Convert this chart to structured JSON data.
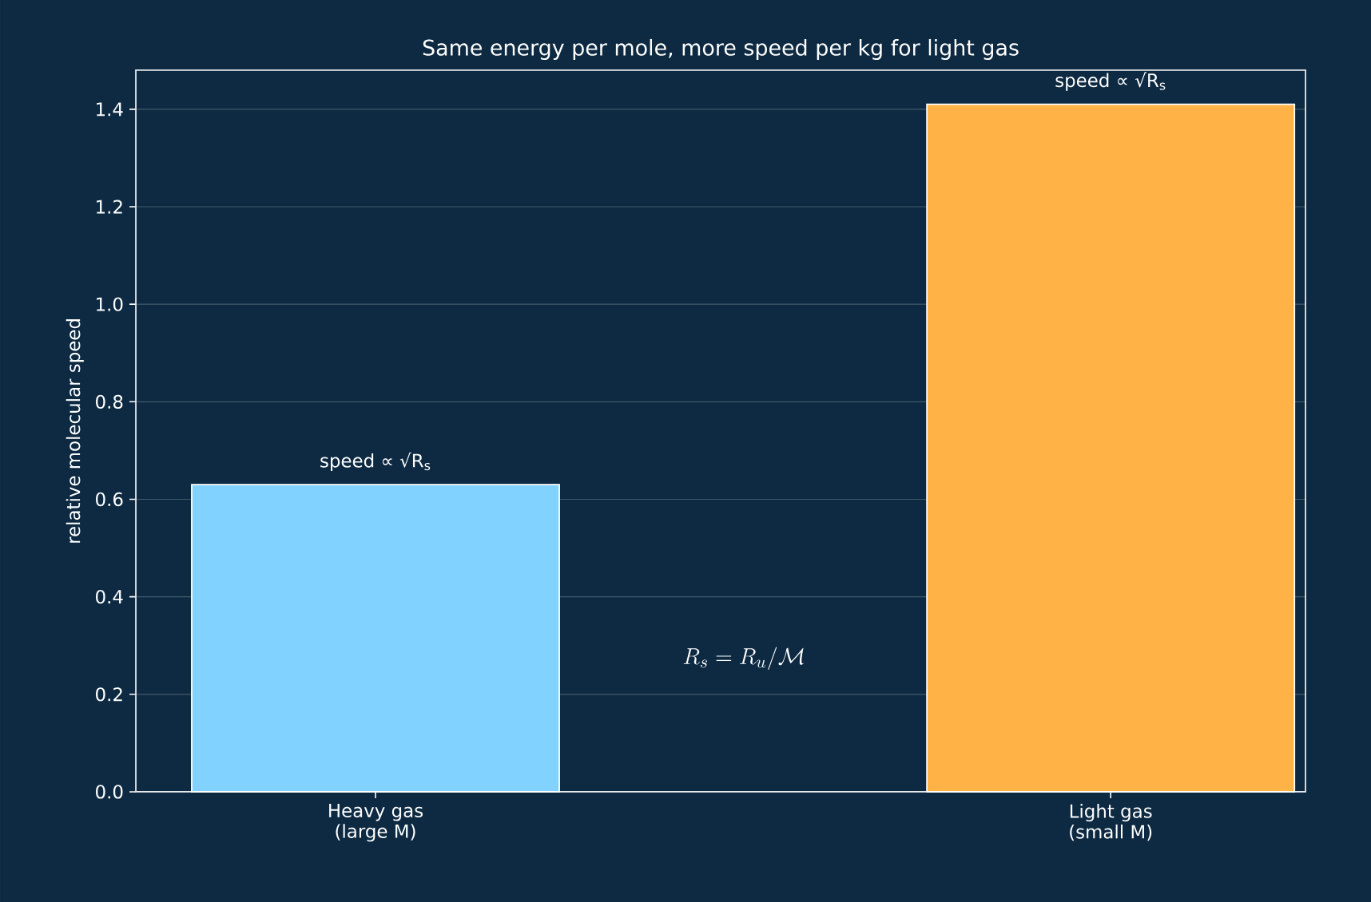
{
  "chart_data": {
    "type": "bar",
    "title": "Same energy per mole, more speed per kg for light gas",
    "ylabel": "relative molecular speed",
    "categories": [
      "Heavy gas\n(large M)",
      "Light gas\n(small M)"
    ],
    "values": [
      0.63,
      1.41
    ],
    "colors": [
      "#82d2ff",
      "#ffb347"
    ],
    "ylim": [
      0,
      1.48
    ],
    "yticks": [
      {
        "value": 0,
        "label": "0.0"
      },
      0.2,
      0.4,
      0.6,
      0.8,
      {
        "value": 1,
        "label": "1.0"
      },
      1.2,
      1.4
    ],
    "grid": "y",
    "annotations": [
      {
        "text": "speed ∝ √R$_{s}$",
        "x": "Heavy gas\n(large M)",
        "y": 0.63
      },
      {
        "text": "speed ∝ √R$_{s}$",
        "x": "Light gas\n(small M)",
        "y": 1.41
      },
      "R_s = R_u/\\mathcal{M}"
    ]
  }
}
